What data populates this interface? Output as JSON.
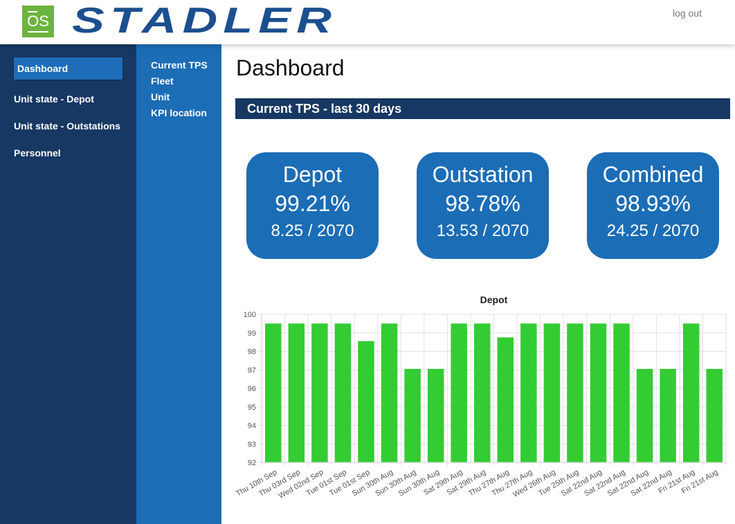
{
  "header": {
    "logo_text": "OS",
    "brand": "STADLER",
    "logout_label": "log out"
  },
  "sidebar": {
    "items": [
      {
        "label": "Dashboard",
        "active": true
      },
      {
        "label": "Unit state - Depot",
        "active": false
      },
      {
        "label": "Unit state - Outstations",
        "active": false
      },
      {
        "label": "Personnel",
        "active": false
      }
    ]
  },
  "subnav": {
    "items": [
      {
        "label": "Current TPS"
      },
      {
        "label": "Fleet"
      },
      {
        "label": "Unit"
      },
      {
        "label": "KPI location"
      }
    ]
  },
  "main": {
    "title": "Dashboard",
    "section_title": "Current TPS - last 30 days",
    "cards": [
      {
        "title": "Depot",
        "percent": "99.21%",
        "fraction": "8.25 / 2070"
      },
      {
        "title": "Outstation",
        "percent": "98.78%",
        "fraction": "13.53 / 2070"
      },
      {
        "title": "Combined",
        "percent": "98.93%",
        "fraction": "24.25 / 2070"
      }
    ]
  },
  "colors": {
    "dark_blue": "#163863",
    "mid_blue": "#1b6db6",
    "bar_green": "#33cc33",
    "brand_blue": "#1c4f8f"
  },
  "chart_data": {
    "type": "bar",
    "title": "Depot",
    "categories": [
      "Thu 10th Sep",
      "Thu 03rd Sep",
      "Wed 02nd Sep",
      "Tue 01st Sep",
      "Tue 01st Sep",
      "Sun 30th Aug",
      "Sun 30th Aug",
      "Sun 30th Aug",
      "Sat 29th Aug",
      "Sat 29th Aug",
      "Thu 27th Aug",
      "Thu 27th Aug",
      "Wed 26th Aug",
      "Tue 25th Aug",
      "Sat 22nd Aug",
      "Sat 22nd Aug",
      "Sat 22nd Aug",
      "Sat 22nd Aug",
      "Fri 21st Aug",
      "Fri 21st Aug"
    ],
    "values": [
      99.5,
      99.5,
      99.5,
      99.5,
      98.55,
      99.5,
      97.05,
      97.05,
      99.5,
      99.5,
      98.75,
      99.5,
      99.5,
      99.5,
      99.5,
      99.5,
      97.05,
      97.05,
      99.5,
      97.05
    ],
    "ylim": [
      92,
      100
    ],
    "yticks": [
      92,
      93,
      94,
      95,
      96,
      97,
      98,
      99,
      100
    ],
    "grid": true,
    "xlabel": "",
    "ylabel": ""
  }
}
